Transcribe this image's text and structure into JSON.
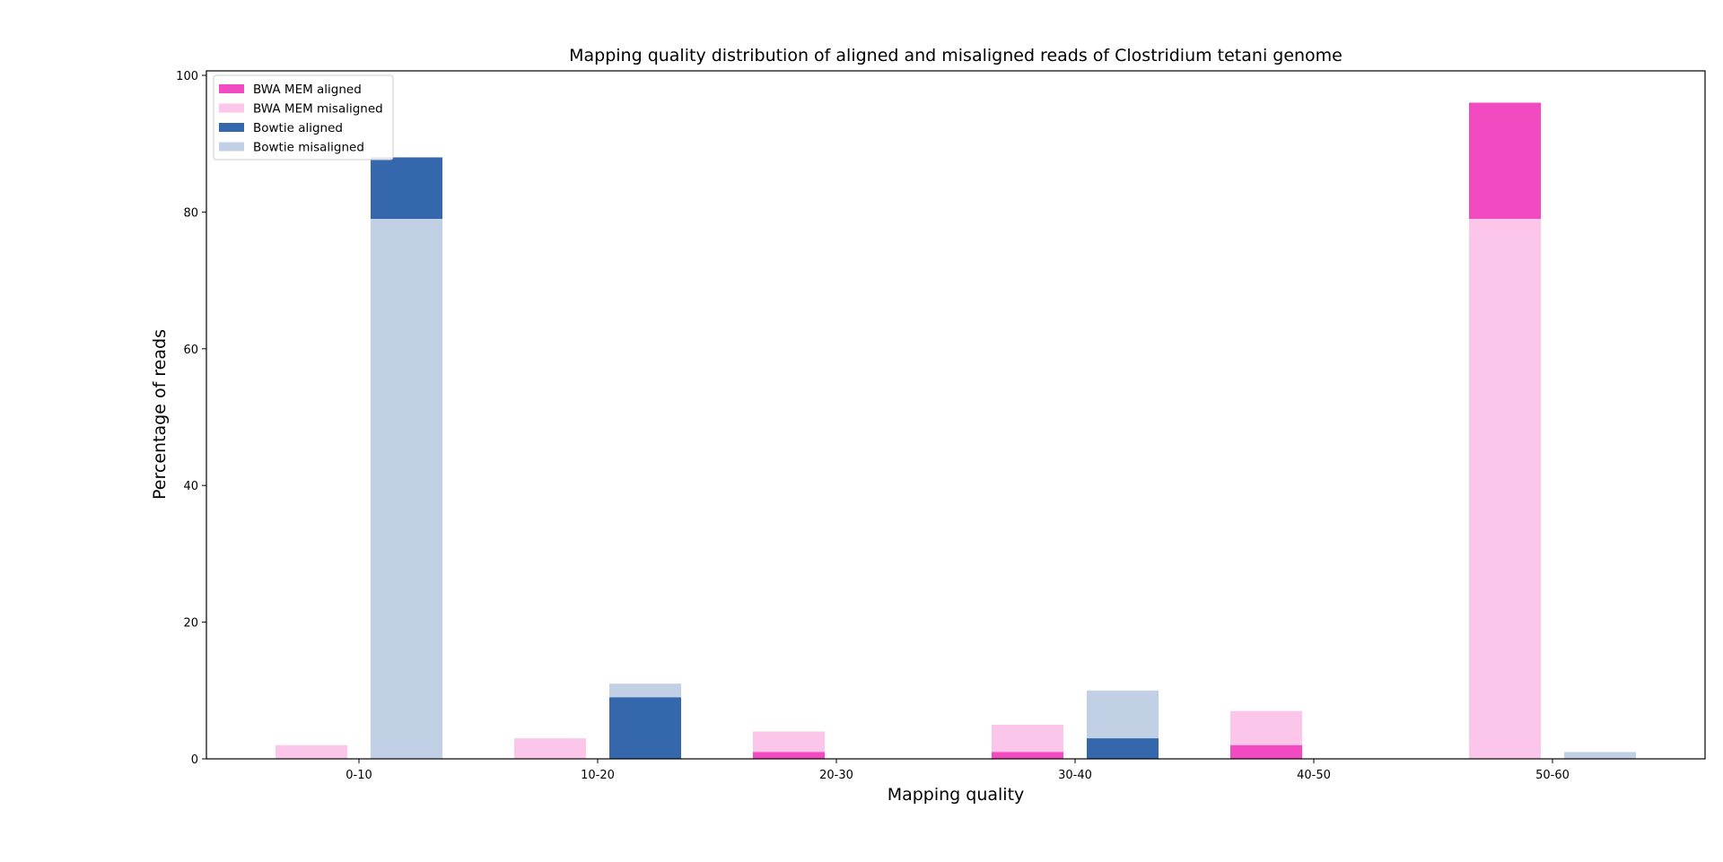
{
  "chart_data": {
    "type": "bar",
    "title": "Mapping quality distribution of aligned and misaligned reads of Clostridium tetani genome",
    "xlabel": "Mapping quality",
    "ylabel": "Percentage of reads",
    "categories": [
      "0-10",
      "10-20",
      "20-30",
      "30-40",
      "40-50",
      "50-60"
    ],
    "ylim": [
      0,
      100
    ],
    "yticks": [
      0,
      20,
      40,
      60,
      80,
      100
    ],
    "legend_position": "top-left",
    "grid": false,
    "series": [
      {
        "name": "BWA MEM aligned",
        "group": "BWA MEM",
        "color": "#f24ac0",
        "values": [
          0,
          0,
          1,
          1,
          2,
          96
        ]
      },
      {
        "name": "BWA MEM misaligned",
        "group": "BWA MEM",
        "color": "#fbc6ea",
        "values": [
          2,
          3,
          4,
          5,
          7,
          79
        ]
      },
      {
        "name": "Bowtie aligned",
        "group": "Bowtie",
        "color": "#3567ad",
        "values": [
          88,
          9,
          0,
          3,
          0,
          0
        ]
      },
      {
        "name": "Bowtie misaligned",
        "group": "Bowtie",
        "color": "#c2d0e6",
        "values": [
          79,
          11,
          0,
          10,
          0,
          1
        ]
      }
    ]
  }
}
